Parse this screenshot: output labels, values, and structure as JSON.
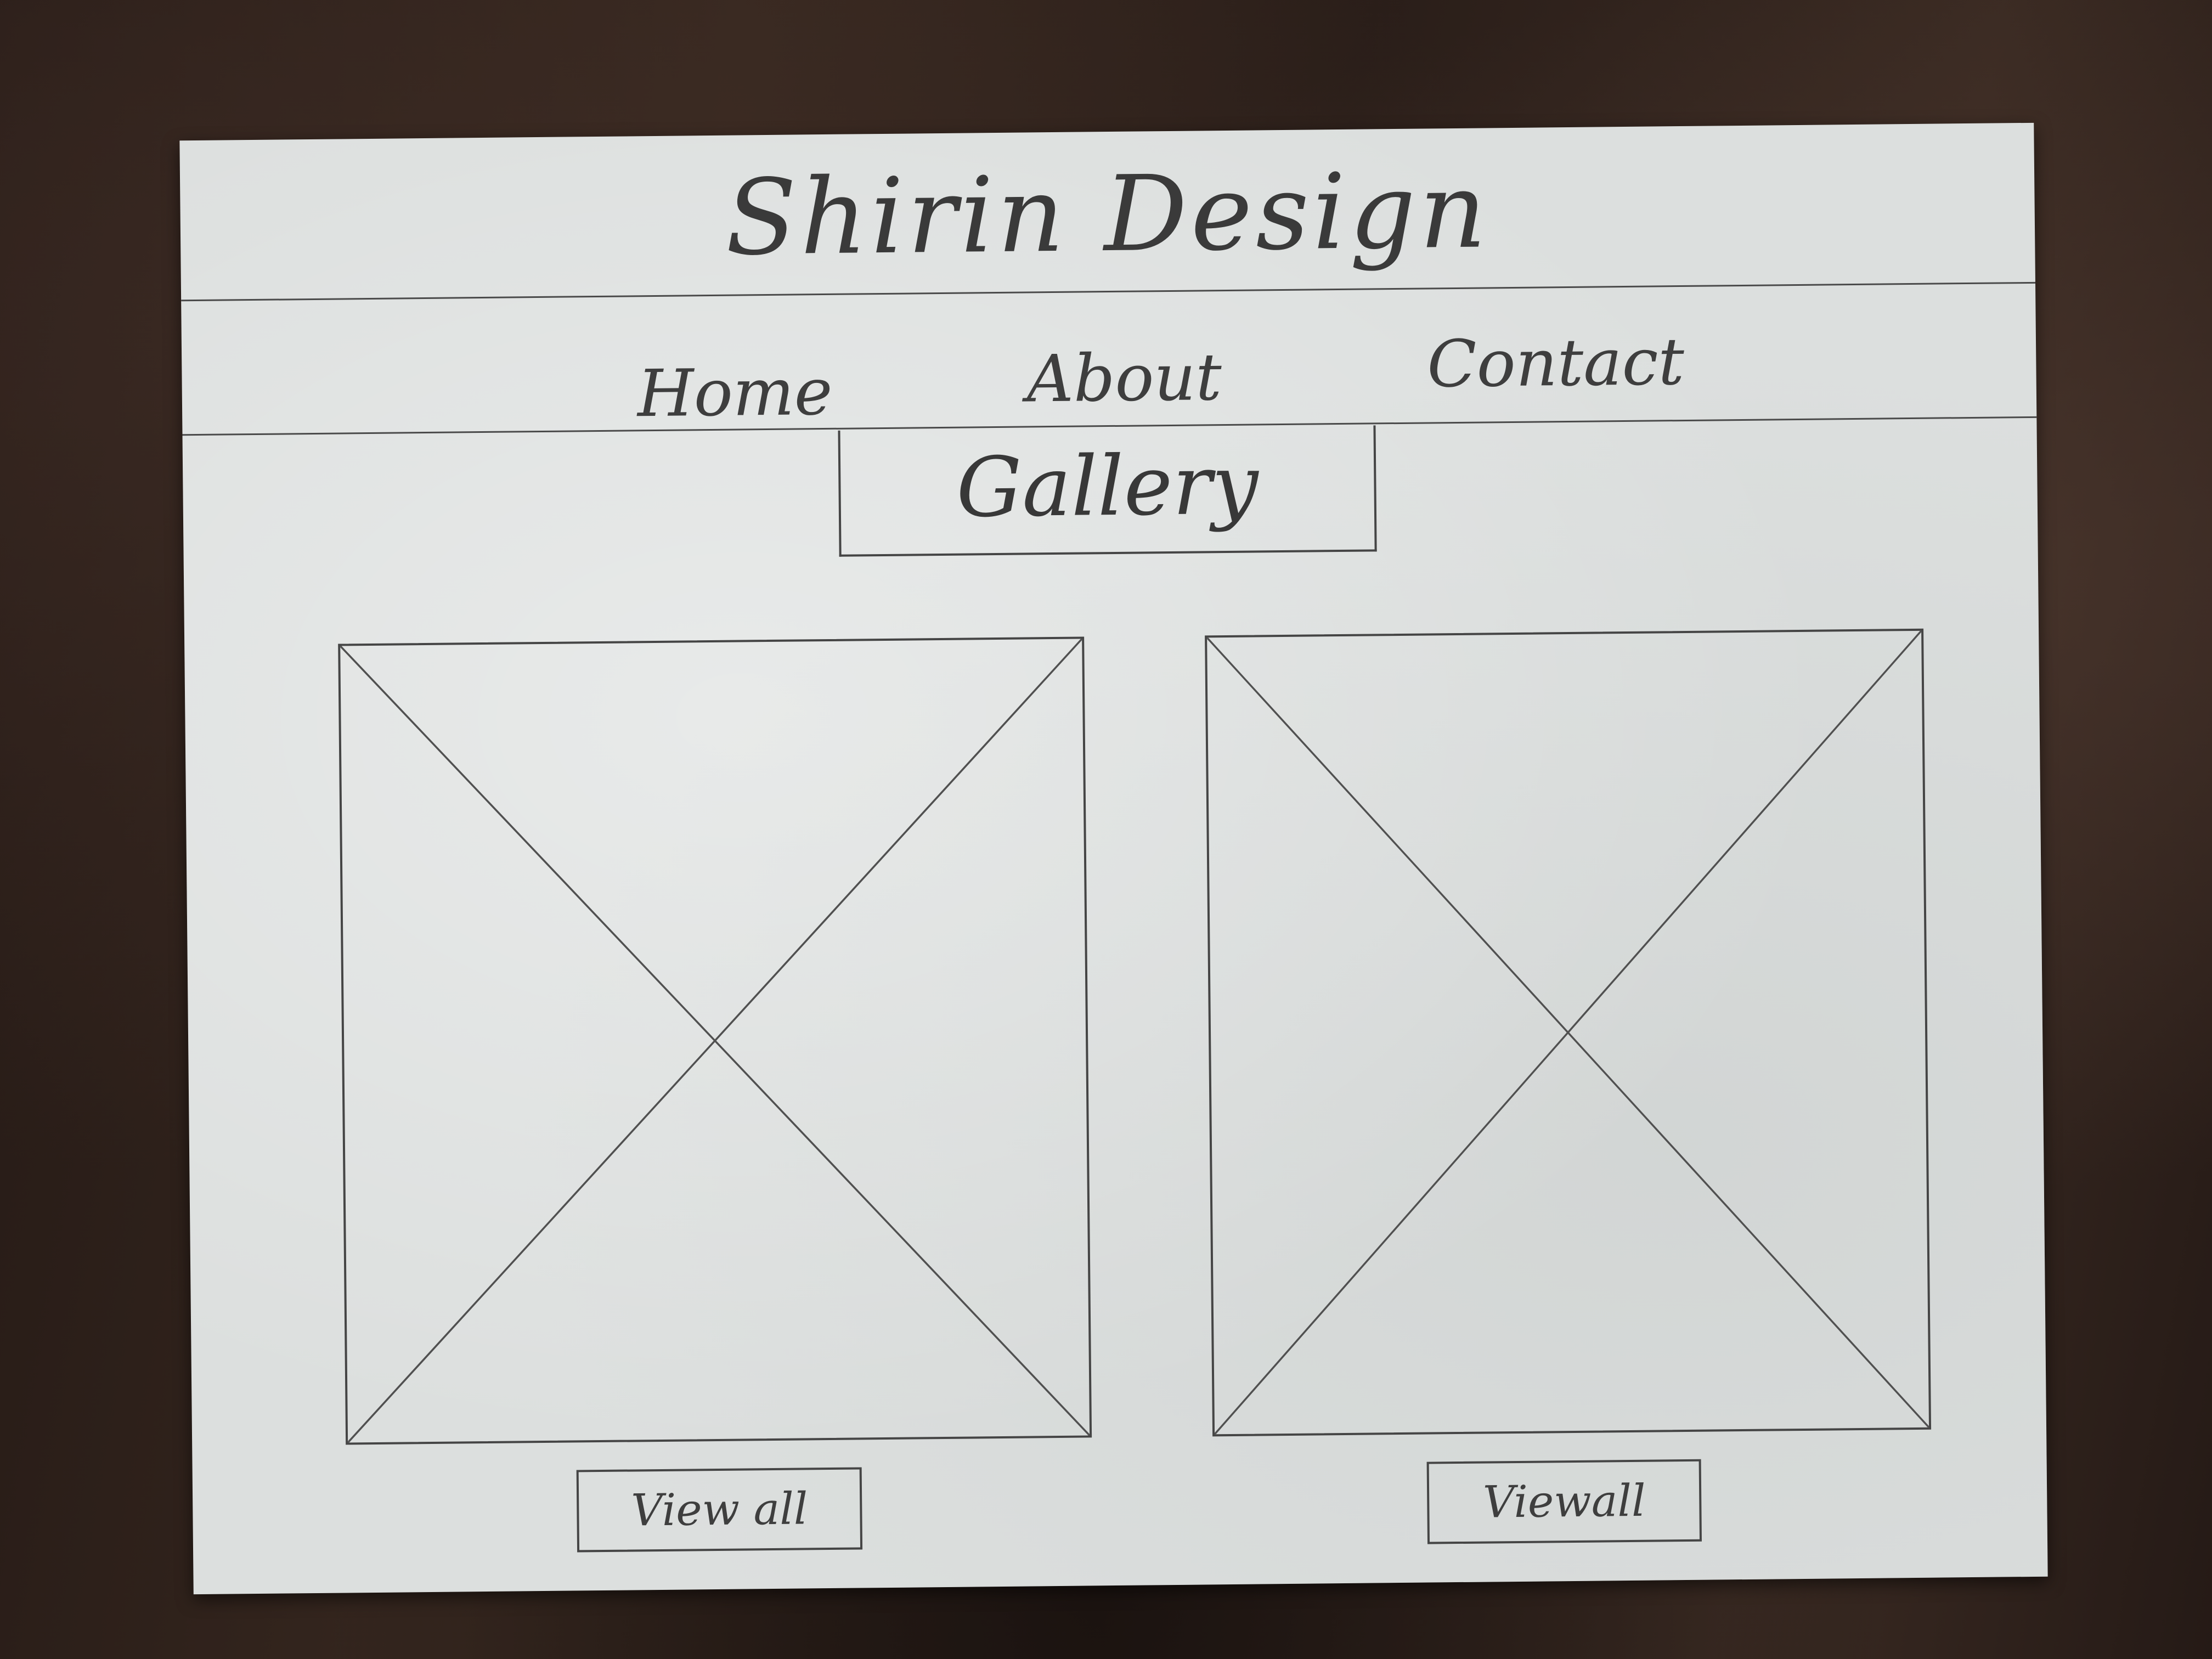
{
  "header": {
    "site_title": "Shirin Design"
  },
  "nav": {
    "items": [
      {
        "label": "Home"
      },
      {
        "label": "About"
      },
      {
        "label": "Contact"
      }
    ]
  },
  "gallery": {
    "heading": "Gallery",
    "cards": [
      {
        "image_icon": "image-placeholder-icon",
        "button_label": "View all"
      },
      {
        "image_icon": "image-placeholder-icon",
        "button_label": "Viewall"
      }
    ]
  },
  "colors": {
    "paper": "#dcdfde",
    "ink": "#3e3e3e",
    "desk": "#2b1f1b"
  }
}
